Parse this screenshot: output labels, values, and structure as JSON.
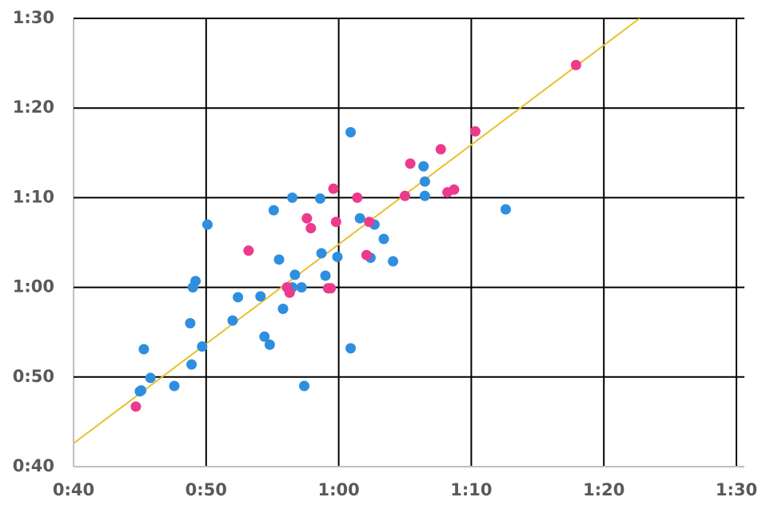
{
  "chart_data": {
    "type": "scatter",
    "xlim": [
      40,
      90
    ],
    "xticks": [
      {
        "value": 40,
        "label": "0:40"
      },
      {
        "value": 50,
        "label": "0:50"
      },
      {
        "value": 60,
        "label": "1:00"
      },
      {
        "value": 70,
        "label": "1:10"
      },
      {
        "value": 80,
        "label": "1:20"
      },
      {
        "value": 90,
        "label": "1:30"
      }
    ],
    "ylim": [
      40,
      90
    ],
    "yticks": [
      {
        "value": 40,
        "label": "0:40"
      },
      {
        "value": 50,
        "label": "0:50"
      },
      {
        "value": 60,
        "label": "1:00"
      },
      {
        "value": 70,
        "label": "1:10"
      },
      {
        "value": 80,
        "label": "1:20"
      },
      {
        "value": 90,
        "label": "1:30"
      }
    ],
    "grid": true,
    "series": [
      {
        "color": "#2e8fe0",
        "x": [
          45.0,
          45.1,
          45.3,
          45.8,
          47.6,
          48.8,
          48.9,
          49.0,
          49.2,
          49.7,
          50.1,
          52.0,
          52.4,
          54.1,
          54.4,
          54.8,
          55.1,
          55.5,
          55.8,
          56.5,
          56.5,
          56.7,
          57.2,
          57.4,
          58.6,
          58.7,
          59.0,
          59.9,
          60.9,
          60.9,
          61.6,
          62.4,
          62.7,
          63.4,
          64.1,
          66.4,
          66.5,
          66.5,
          72.6
        ],
        "values": [
          48.4,
          48.5,
          53.1,
          49.9,
          49.0,
          56.0,
          51.4,
          60.0,
          60.7,
          53.4,
          67.0,
          56.3,
          58.9,
          59.0,
          54.5,
          53.6,
          68.6,
          63.1,
          57.6,
          70.0,
          60.0,
          61.4,
          60.0,
          49.0,
          69.9,
          63.8,
          61.3,
          63.4,
          53.2,
          77.3,
          67.7,
          63.3,
          67.0,
          65.4,
          62.9,
          73.5,
          71.8,
          70.2,
          68.7
        ]
      },
      {
        "color": "#ec3a8c",
        "x": [
          44.7,
          53.2,
          56.1,
          56.3,
          57.6,
          57.9,
          59.2,
          59.4,
          59.6,
          59.8,
          61.4,
          62.1,
          62.3,
          65.0,
          65.4,
          67.7,
          68.2,
          68.7,
          70.3,
          77.9
        ],
        "values": [
          46.7,
          64.1,
          60.0,
          59.4,
          67.7,
          66.6,
          59.9,
          59.9,
          71.0,
          67.3,
          70.0,
          63.6,
          67.3,
          70.2,
          73.8,
          75.4,
          70.6,
          70.9,
          77.4,
          84.8
        ]
      },
      {
        "color": "#e8c02c",
        "line": true,
        "x": [
          40,
          82.7
        ],
        "values": [
          42.6,
          90
        ]
      }
    ]
  }
}
